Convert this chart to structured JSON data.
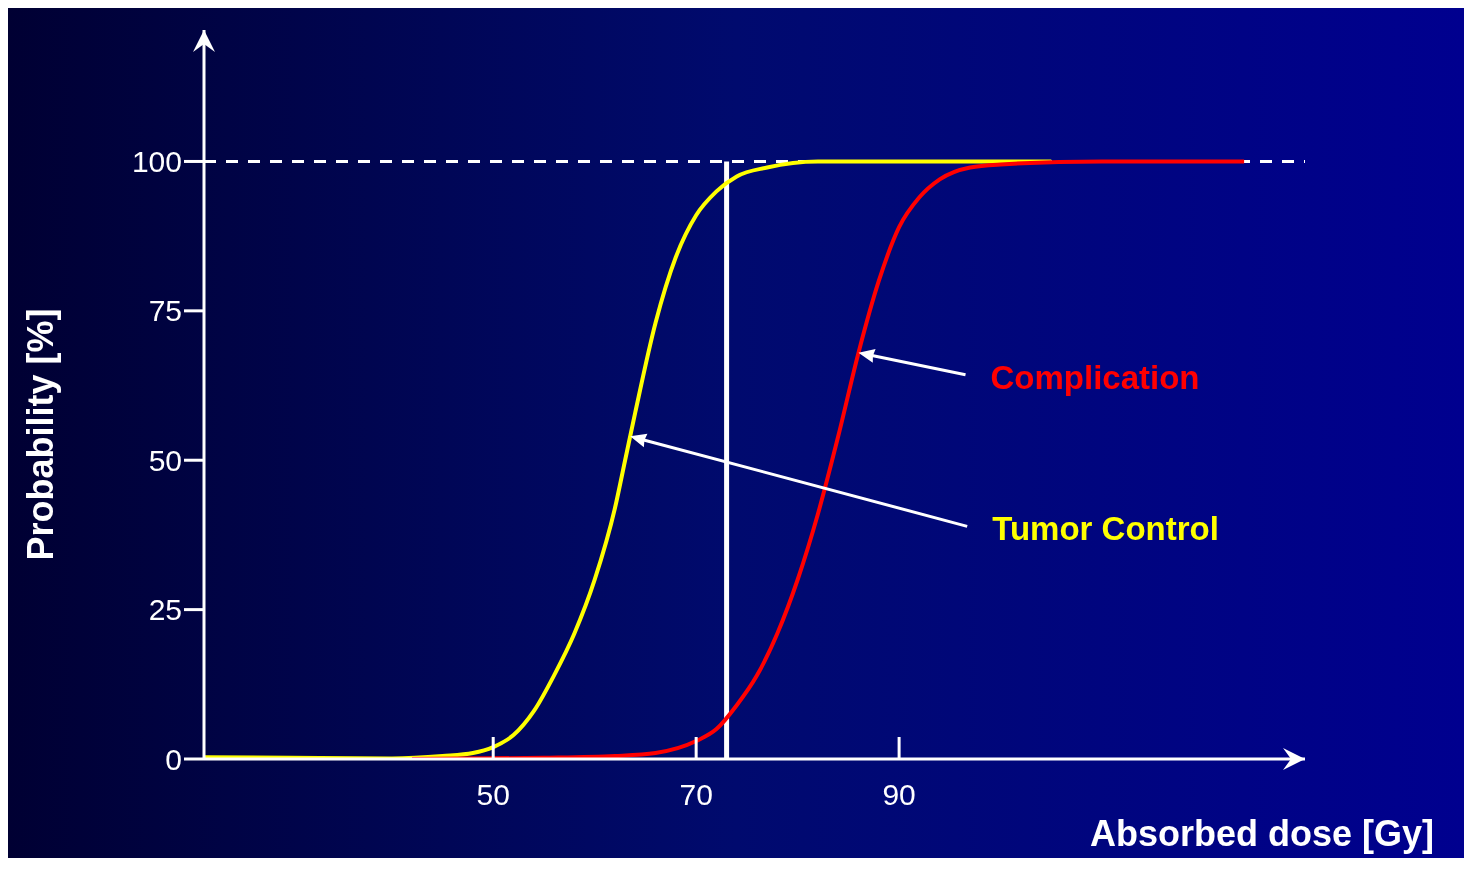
{
  "chart_data": {
    "type": "line",
    "xlabel": "Absorbed dose [Gy]",
    "ylabel": "Probability [%]",
    "xlim": [
      21.5,
      130
    ],
    "xticks": [
      50,
      70,
      90
    ],
    "ylim": [
      0,
      122
    ],
    "yticks": [
      0,
      25,
      50,
      75,
      100
    ],
    "marker": "none",
    "line_style": "solid",
    "series": [
      {
        "name": "Tumor Control",
        "color": "#ffff00",
        "x": [
          21.5,
          30,
          40,
          45,
          48,
          50,
          52,
          54,
          56,
          58,
          60,
          62,
          63,
          64,
          66,
          68,
          70,
          72,
          74,
          77,
          82,
          105
        ],
        "values": [
          0.3,
          0.2,
          0.1,
          0.5,
          1,
          2,
          4,
          8,
          14,
          21,
          30,
          42,
          50,
          58,
          73,
          84,
          91,
          95,
          97.5,
          99,
          100,
          100
        ]
      },
      {
        "name": "Complication",
        "color": "#ff0000",
        "x": [
          42,
          55,
          62,
          66,
          70,
          72,
          74,
          76,
          78,
          80,
          82,
          84,
          86,
          88,
          90,
          92,
          94,
          97,
          100,
          110,
          124
        ],
        "values": [
          0,
          0.2,
          0.5,
          1,
          3,
          5,
          9,
          14,
          21,
          30,
          41,
          54,
          68,
          80,
          89,
          94,
          97,
          99,
          99.5,
          100,
          100
        ]
      }
    ],
    "ref_lines": [
      {
        "axis": "x",
        "value": 73,
        "color": "#ffffff",
        "line_style": "solid"
      },
      {
        "axis": "y",
        "value": 100,
        "color": "#ffffff",
        "line_style": "dashed"
      }
    ]
  }
}
